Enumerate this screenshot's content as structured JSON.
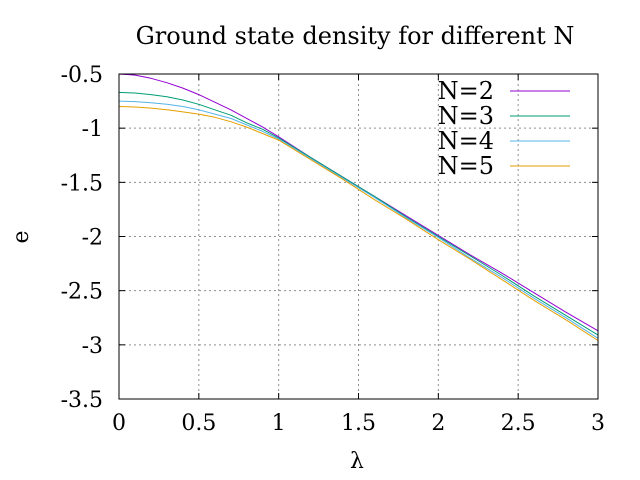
{
  "chart_data": {
    "type": "line",
    "title": "Ground state density for different N",
    "xlabel": "λ",
    "ylabel": "e",
    "xlim": [
      0,
      3
    ],
    "ylim": [
      -3.5,
      -0.5
    ],
    "xticks": [
      "0",
      "0.5",
      "1",
      "1.5",
      "2",
      "2.5",
      "3"
    ],
    "yticks": [
      "-0.5",
      "-1",
      "-1.5",
      "-2",
      "-2.5",
      "-3",
      "-3.5"
    ],
    "grid": true,
    "legend_position": "top-right",
    "x": [
      0,
      0.1,
      0.2,
      0.3,
      0.4,
      0.5,
      0.6,
      0.7,
      0.8,
      0.9,
      1.0,
      1.2,
      1.4,
      1.6,
      1.8,
      2.0,
      2.2,
      2.4,
      2.6,
      2.8,
      3.0
    ],
    "series": [
      {
        "name": "N=2",
        "color": "#9400d3",
        "values": [
          -0.5,
          -0.51,
          -0.54,
          -0.58,
          -0.63,
          -0.69,
          -0.76,
          -0.83,
          -0.91,
          -0.99,
          -1.08,
          -1.27,
          -1.45,
          -1.63,
          -1.81,
          -1.99,
          -2.17,
          -2.34,
          -2.52,
          -2.7,
          -2.87
        ]
      },
      {
        "name": "N=3",
        "color": "#009e73",
        "values": [
          -0.67,
          -0.675,
          -0.69,
          -0.71,
          -0.74,
          -0.78,
          -0.83,
          -0.88,
          -0.95,
          -1.01,
          -1.09,
          -1.27,
          -1.45,
          -1.63,
          -1.82,
          -2.0,
          -2.18,
          -2.36,
          -2.55,
          -2.73,
          -2.91
        ]
      },
      {
        "name": "N=4",
        "color": "#56b4e9",
        "values": [
          -0.75,
          -0.755,
          -0.765,
          -0.78,
          -0.8,
          -0.83,
          -0.87,
          -0.91,
          -0.97,
          -1.03,
          -1.1,
          -1.28,
          -1.46,
          -1.64,
          -1.83,
          -2.01,
          -2.2,
          -2.38,
          -2.57,
          -2.75,
          -2.94
        ]
      },
      {
        "name": "N=5",
        "color": "#e69f00",
        "values": [
          -0.8,
          -0.805,
          -0.815,
          -0.83,
          -0.85,
          -0.87,
          -0.9,
          -0.94,
          -0.99,
          -1.05,
          -1.11,
          -1.29,
          -1.47,
          -1.66,
          -1.84,
          -2.03,
          -2.21,
          -2.4,
          -2.59,
          -2.77,
          -2.96
        ]
      }
    ]
  }
}
